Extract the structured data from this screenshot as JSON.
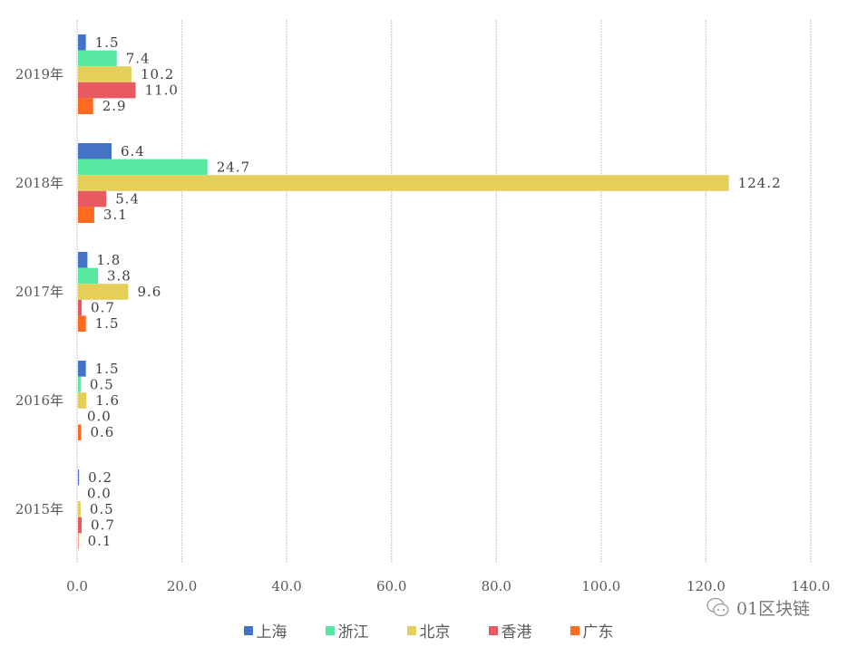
{
  "chart_data": {
    "type": "bar",
    "orientation": "horizontal",
    "title": "",
    "xlabel": "",
    "ylabel": "",
    "xlim": [
      0,
      140
    ],
    "x_ticks": [
      "0.0",
      "20.0",
      "40.0",
      "60.0",
      "80.0",
      "100.0",
      "120.0",
      "140.0"
    ],
    "x_tick_values": [
      0,
      20,
      40,
      60,
      80,
      100,
      120,
      140
    ],
    "grid": true,
    "legend_position": "bottom",
    "categories": [
      "2019年",
      "2018年",
      "2017年",
      "2016年",
      "2015年"
    ],
    "series": [
      {
        "name": "上海",
        "color": "#4472C4",
        "values": [
          1.5,
          6.4,
          1.8,
          1.5,
          0.2
        ],
        "labels": [
          "1.5",
          "6.4",
          "1.8",
          "1.5",
          "0.2"
        ]
      },
      {
        "name": "浙江",
        "color": "#58E8A2",
        "values": [
          7.4,
          24.7,
          3.8,
          0.5,
          0.0
        ],
        "labels": [
          "7.4",
          "24.7",
          "3.8",
          "0.5",
          "0.0"
        ]
      },
      {
        "name": "北京",
        "color": "#E4CF5A",
        "values": [
          10.2,
          124.2,
          9.6,
          1.6,
          0.5
        ],
        "labels": [
          "10.2",
          "124.2",
          "9.6",
          "1.6",
          "0.5"
        ]
      },
      {
        "name": "香港",
        "color": "#E85A62",
        "values": [
          11.0,
          5.4,
          0.7,
          0.0,
          0.7
        ],
        "labels": [
          "11.0",
          "5.4",
          "0.7",
          "0.0",
          "0.7"
        ]
      },
      {
        "name": "广东",
        "color": "#FF6A22",
        "values": [
          2.9,
          3.1,
          1.5,
          0.6,
          0.1
        ],
        "labels": [
          "2.9",
          "3.1",
          "1.5",
          "0.6",
          "0.1"
        ]
      }
    ]
  },
  "watermark": {
    "text": "01区块链",
    "icon": "wechat-icon"
  }
}
